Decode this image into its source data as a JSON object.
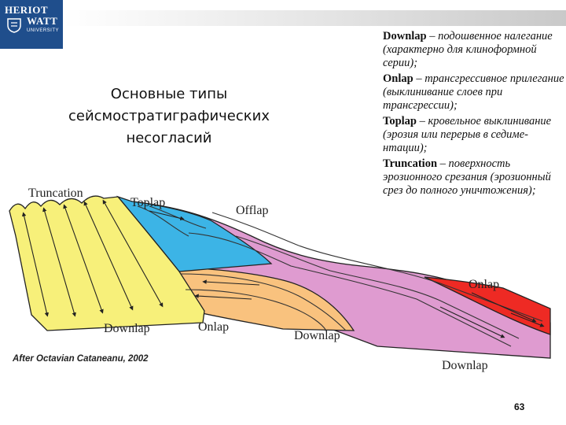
{
  "logo": {
    "line1": "HERIOT",
    "line2": "WATT",
    "line3": "UNIVERSITY"
  },
  "title": {
    "line1": "Основные типы",
    "line2": "сейсмостратиграфических",
    "line3": "несогласий"
  },
  "definitions": [
    {
      "term": "Downlap",
      "desc": " – подошвенное налегание (характерно для клиноформной серии);"
    },
    {
      "term": "Onlap",
      "desc": " – трансгрессивное прилегание (выклинивание слоев при трансгрессии);"
    },
    {
      "term": "Toplap",
      "desc": " – кровельное выклинивание (эрозия или перерыв в седиме-нтации);"
    },
    {
      "term": "Truncation",
      "desc": " – поверхность эрозионного срезания (эрозионный срез до полного уничтожения);"
    }
  ],
  "diagram": {
    "labels": {
      "truncation": "Truncation",
      "toplap": "Toplap",
      "offlap": "Offlap",
      "onlap_right": "Onlap",
      "downlap_left": "Downlap",
      "onlap_mid": "Onlap",
      "downlap_mid": "Downlap",
      "downlap_right": "Downlap"
    },
    "colors": {
      "yellow": "#f7f07a",
      "cyan": "#3cb4e6",
      "pink": "#df9bd0",
      "orange": "#f9c27e",
      "red": "#ee2a24",
      "outline": "#222222"
    }
  },
  "credit": "After Octavian Cataneanu, 2002",
  "page_number": "63"
}
